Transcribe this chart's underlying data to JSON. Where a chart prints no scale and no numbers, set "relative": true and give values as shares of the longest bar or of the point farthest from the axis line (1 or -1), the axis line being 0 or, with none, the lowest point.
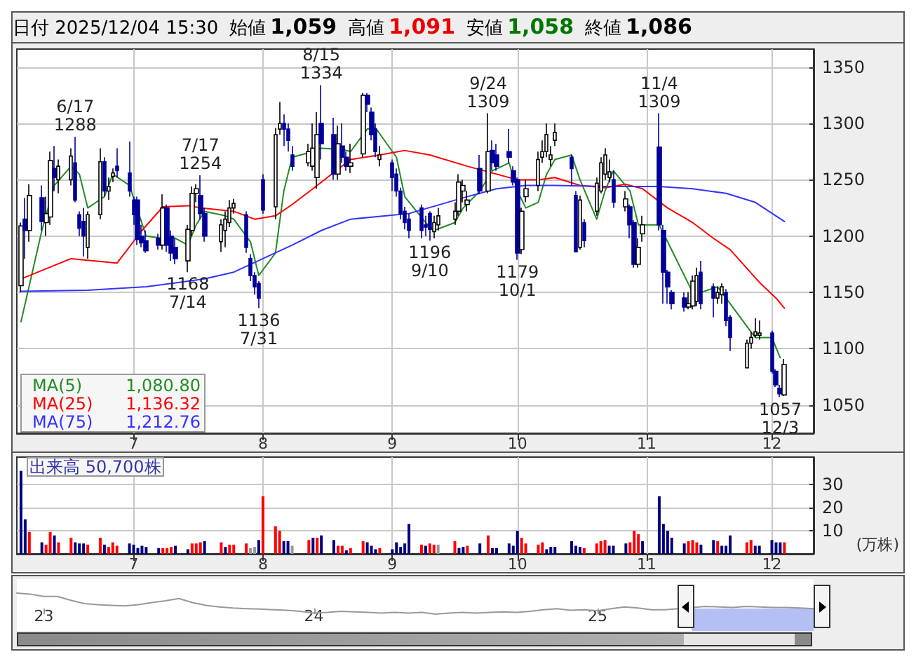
{
  "chart_data": [
    {
      "type": "candlestick",
      "title": "日付 2025/12/04 15:30",
      "grid": true,
      "legend": "bottom left",
      "colors": [
        "#ffffff",
        "#000099",
        "#ffffff",
        "#000099",
        "#ffffff",
        "#ffffff",
        "#000099",
        "#ffffff",
        "#ffffff",
        "#000099",
        "#000099",
        "#000099",
        "#ffffff",
        "#ffffff",
        "#000099",
        "#ffffff",
        "#ffffff",
        "#000099",
        "#000099",
        "#000099",
        "#000099",
        "#000099",
        "#000099",
        "#000099",
        "#ffffff",
        "#000099",
        "#000099",
        "#000099",
        "#ffffff",
        "#ffffff",
        "#ffffff",
        "#000099",
        "#000099",
        "#ffffff",
        "#ffffff",
        "#ffffff",
        "#ffffff",
        "#000099",
        "#000099",
        "#000099",
        "#000099",
        "#000099",
        "#ffffff",
        "#ffffff",
        "#000099",
        "#000099",
        "#000099",
        "#ffffff",
        "#ffffff",
        "#ffffff",
        "#000099",
        "#000099",
        "#ffffff",
        "#000099",
        "#000099",
        "#ffffff",
        "#ffffff",
        "#000099",
        "#000099",
        "#000099",
        "#ffffff",
        "#000099",
        "#000099",
        "#000099",
        "#000099",
        "#000099",
        "#000099",
        "#000099",
        "#000099",
        "#ffffff",
        "#ffffff",
        "#ffffff",
        "#ffffff",
        "#ffffff",
        "#ffffff",
        "#000099",
        "#ffffff",
        "#000099",
        "#000099",
        "#000099",
        "#000099",
        "#000099",
        "#ffffff",
        "#ffffff",
        "#ffffff",
        "#ffffff",
        "#ffffff",
        "#ffffff",
        "#ffffff",
        "#000099",
        "#000099",
        "#ffffff",
        "#000099",
        "#ffffff",
        "#ffffff",
        "#ffffff",
        "#ffffff",
        "#000099",
        "#ffffff",
        "#000099",
        "#000099",
        "#ffffff",
        "#ffffff",
        "#000099",
        "#000099",
        "#000099",
        "#000099",
        "#000099",
        "#ffffff",
        "#ffffff",
        "#ffffff",
        "#000099",
        "#000099",
        "#ffffff",
        "#ffffff",
        "#000099",
        "#000099",
        "#ffffff",
        "#ffffff",
        "#ffffff",
        "#ffffff",
        "#000099",
        "#000099",
        "#000099",
        "#ffffff"
      ],
      "annotations": [
        "始値 1,059",
        "高値 1,091",
        "安値 1,058",
        "終値 1,086",
        {
          "text": "6/17\n1288",
          "x": "2025-06-17",
          "y": 1288
        },
        {
          "text": "1168\n7/14",
          "x": "2025-07-14",
          "y": 1168
        },
        {
          "text": "7/17\n1254",
          "x": "2025-07-17",
          "y": 1254
        },
        {
          "text": "1136\n7/31",
          "x": "2025-07-31",
          "y": 1136
        },
        {
          "text": "8/15\n1334",
          "x": "2025-08-15",
          "y": 1334
        },
        {
          "text": "1196\n9/10",
          "x": "2025-09-10",
          "y": 1196
        },
        {
          "text": "9/24\n1309",
          "x": "2025-09-24",
          "y": 1309
        },
        {
          "text": "1179\n10/1",
          "x": "2025-10-01",
          "y": 1179
        },
        {
          "text": "11/4\n1309",
          "x": "2025-11-04",
          "y": 1309
        },
        {
          "text": "1057\n12/3",
          "x": "2025-12-03",
          "y": 1057
        },
        "1,080.80",
        "1,136.32",
        "1,212.76"
      ],
      "x": [
        "2025-06-04",
        "2025-06-05",
        "2025-06-06",
        "2025-06-09",
        "2025-06-10",
        "2025-06-11",
        "2025-06-12",
        "2025-06-13",
        "2025-06-16",
        "2025-06-17",
        "2025-06-18",
        "2025-06-19",
        "2025-06-20",
        "2025-06-23",
        "2025-06-24",
        "2025-06-25",
        "2025-06-26",
        "2025-06-27",
        "2025-06-30",
        "2025-07-01",
        "2025-07-02",
        "2025-07-03",
        "2025-07-04",
        "2025-07-07",
        "2025-07-08",
        "2025-07-09",
        "2025-07-10",
        "2025-07-11",
        "2025-07-14",
        "2025-07-15",
        "2025-07-16",
        "2025-07-17",
        "2025-07-18",
        "2025-07-22",
        "2025-07-23",
        "2025-07-24",
        "2025-07-25",
        "2025-07-28",
        "2025-07-29",
        "2025-07-30",
        "2025-07-31",
        "2025-08-01",
        "2025-08-04",
        "2025-08-05",
        "2025-08-06",
        "2025-08-07",
        "2025-08-08",
        "2025-08-12",
        "2025-08-13",
        "2025-08-14",
        "2025-08-15",
        "2025-08-18",
        "2025-08-19",
        "2025-08-20",
        "2025-08-21",
        "2025-08-22",
        "2025-08-25",
        "2025-08-26",
        "2025-08-27",
        "2025-08-28",
        "2025-08-29",
        "2025-09-01",
        "2025-09-02",
        "2025-09-03",
        "2025-09-04",
        "2025-09-05",
        "2025-09-08",
        "2025-09-09",
        "2025-09-10",
        "2025-09-11",
        "2025-09-12",
        "2025-09-16",
        "2025-09-17",
        "2025-09-18",
        "2025-09-19",
        "2025-09-22",
        "2025-09-24",
        "2025-09-25",
        "2025-09-26",
        "2025-09-29",
        "2025-09-30",
        "2025-10-01",
        "2025-10-02",
        "2025-10-03",
        "2025-10-06",
        "2025-10-07",
        "2025-10-08",
        "2025-10-09",
        "2025-10-10",
        "2025-10-14",
        "2025-10-15",
        "2025-10-16",
        "2025-10-17",
        "2025-10-20",
        "2025-10-21",
        "2025-10-22",
        "2025-10-23",
        "2025-10-24",
        "2025-10-27",
        "2025-10-28",
        "2025-10-29",
        "2025-10-30",
        "2025-10-31",
        "2025-11-04",
        "2025-11-05",
        "2025-11-06",
        "2025-11-07",
        "2025-11-10",
        "2025-11-11",
        "2025-11-12",
        "2025-11-13",
        "2025-11-14",
        "2025-11-17",
        "2025-11-18",
        "2025-11-19",
        "2025-11-20",
        "2025-11-21",
        "2025-11-25",
        "2025-11-26",
        "2025-11-27",
        "2025-11-28",
        "2025-12-01",
        "2025-12-02",
        "2025-12-03",
        "2025-12-04"
      ],
      "xlim": [
        "2025-06-03",
        "2025-12-11"
      ],
      "xticks": [
        {
          "value": "2025-07-01",
          "label": "7"
        },
        {
          "value": "2025-08-01",
          "label": "8"
        },
        {
          "value": "2025-09-01",
          "label": "9"
        },
        {
          "value": "2025-10-01",
          "label": "10"
        },
        {
          "value": "2025-11-01",
          "label": "11"
        },
        {
          "value": "2025-12-01",
          "label": "12"
        }
      ],
      "ylim": [
        1025,
        1366
      ],
      "yticks": [
        1050,
        1100,
        1150,
        1200,
        1250,
        1300,
        1350
      ],
      "ohlc": [
        [
          1156,
          1212,
          1150,
          1209
        ],
        [
          1215,
          1234,
          1180,
          1205
        ],
        [
          1205,
          1246,
          1195,
          1236
        ],
        [
          1234,
          1245,
          1205,
          1213
        ],
        [
          1212,
          1235,
          1200,
          1220
        ],
        [
          1217,
          1275,
          1210,
          1267
        ],
        [
          1260,
          1280,
          1240,
          1252
        ],
        [
          1250,
          1268,
          1238,
          1262
        ],
        [
          1250,
          1278,
          1245,
          1271
        ],
        [
          1265,
          1288,
          1230,
          1232
        ],
        [
          1219,
          1222,
          1200,
          1207
        ],
        [
          1213,
          1225,
          1182,
          1200
        ],
        [
          1190,
          1222,
          1180,
          1219
        ],
        [
          1219,
          1278,
          1215,
          1266
        ],
        [
          1266,
          1270,
          1235,
          1240
        ],
        [
          1240,
          1252,
          1232,
          1244
        ],
        [
          1253,
          1260,
          1248,
          1256
        ],
        [
          1262,
          1278,
          1252,
          1258
        ],
        [
          1256,
          1284,
          1235,
          1240
        ],
        [
          1232,
          1235,
          1210,
          1219
        ],
        [
          1232,
          1235,
          1192,
          1197
        ],
        [
          1200,
          1210,
          1190,
          1194
        ],
        [
          1196,
          1205,
          1185,
          1187
        ],
        [
          1198,
          1202,
          1188,
          1192
        ],
        [
          1192,
          1237,
          1188,
          1225
        ],
        [
          1225,
          1228,
          1186,
          1192
        ],
        [
          1200,
          1205,
          1178,
          1185
        ],
        [
          1190,
          1198,
          1175,
          1180
        ],
        [
          1178,
          1210,
          1168,
          1206
        ],
        [
          1205,
          1244,
          1200,
          1238
        ],
        [
          1238,
          1246,
          1230,
          1242
        ],
        [
          1236,
          1254,
          1215,
          1220
        ],
        [
          1220,
          1225,
          1195,
          1200
        ],
        [
          1195,
          1215,
          1186,
          1210
        ],
        [
          1205,
          1222,
          1190,
          1215
        ],
        [
          1212,
          1232,
          1208,
          1225
        ],
        [
          1225,
          1233,
          1220,
          1229
        ],
        [
          1219,
          1222,
          1185,
          1190
        ],
        [
          1180,
          1184,
          1160,
          1165
        ],
        [
          1165,
          1168,
          1148,
          1155
        ],
        [
          1158,
          1160,
          1136,
          1145
        ],
        [
          1250,
          1255,
          1220,
          1223
        ],
        [
          1226,
          1296,
          1215,
          1290
        ],
        [
          1295,
          1319,
          1290,
          1300
        ],
        [
          1300,
          1308,
          1280,
          1295
        ],
        [
          1295,
          1300,
          1275,
          1285
        ],
        [
          1272,
          1280,
          1258,
          1262
        ],
        [
          1265,
          1282,
          1262,
          1275
        ],
        [
          1262,
          1300,
          1258,
          1278
        ],
        [
          1252,
          1310,
          1242,
          1290
        ],
        [
          1300,
          1334,
          1268,
          1282
        ],
        [
          1290,
          1305,
          1250,
          1255
        ],
        [
          1255,
          1298,
          1250,
          1282
        ],
        [
          1280,
          1300,
          1265,
          1270
        ],
        [
          1270,
          1275,
          1258,
          1262
        ],
        [
          1262,
          1282,
          1256,
          1265
        ],
        [
          1273,
          1327,
          1270,
          1325
        ],
        [
          1325,
          1327,
          1310,
          1317
        ],
        [
          1310,
          1314,
          1285,
          1290
        ],
        [
          1295,
          1300,
          1270,
          1275
        ],
        [
          1268,
          1280,
          1262,
          1272
        ],
        [
          1265,
          1268,
          1240,
          1252
        ],
        [
          1255,
          1260,
          1235,
          1240
        ],
        [
          1240,
          1243,
          1215,
          1220
        ],
        [
          1222,
          1226,
          1206,
          1212
        ],
        [
          1215,
          1220,
          1198,
          1205
        ],
        [
          1225,
          1228,
          1198,
          1205
        ],
        [
          1210,
          1218,
          1200,
          1208
        ],
        [
          1220,
          1222,
          1196,
          1206
        ],
        [
          1204,
          1218,
          1198,
          1212
        ],
        [
          1210,
          1225,
          1205,
          1218
        ],
        [
          1215,
          1230,
          1210,
          1222
        ],
        [
          1222,
          1255,
          1218,
          1248
        ],
        [
          1240,
          1250,
          1230,
          1245
        ],
        [
          1228,
          1240,
          1222,
          1232
        ],
        [
          1260,
          1272,
          1237,
          1240
        ],
        [
          1240,
          1309,
          1238,
          1275
        ],
        [
          1276,
          1285,
          1258,
          1265
        ],
        [
          1272,
          1282,
          1258,
          1262
        ],
        [
          1275,
          1295,
          1265,
          1270
        ],
        [
          1258,
          1262,
          1245,
          1248
        ],
        [
          1250,
          1252,
          1179,
          1185
        ],
        [
          1188,
          1225,
          1184,
          1222
        ],
        [
          1235,
          1250,
          1230,
          1242
        ],
        [
          1245,
          1275,
          1240,
          1268
        ],
        [
          1270,
          1285,
          1265,
          1275
        ],
        [
          1275,
          1300,
          1270,
          1290
        ],
        [
          1268,
          1280,
          1262,
          1272
        ],
        [
          1285,
          1300,
          1280,
          1292
        ],
        [
          1270,
          1272,
          1245,
          1260
        ],
        [
          1236,
          1240,
          1186,
          1186
        ],
        [
          1190,
          1236,
          1188,
          1232
        ],
        [
          1212,
          1215,
          1190,
          1196
        ],
        [
          1222,
          1252,
          1218,
          1247
        ],
        [
          1240,
          1270,
          1238,
          1265
        ],
        [
          1255,
          1278,
          1250,
          1272
        ],
        [
          1252,
          1268,
          1248,
          1257
        ],
        [
          1250,
          1258,
          1225,
          1230
        ],
        [
          1226,
          1240,
          1222,
          1233
        ],
        [
          1226,
          1228,
          1198,
          1210
        ],
        [
          1212,
          1214,
          1172,
          1175
        ],
        [
          1175,
          1198,
          1172,
          1190
        ],
        [
          1202,
          1218,
          1195,
          1210
        ],
        [
          1279,
          1309,
          1205,
          1210
        ],
        [
          1205,
          1210,
          1140,
          1168
        ],
        [
          1168,
          1170,
          1140,
          1155
        ],
        [
          1150,
          1152,
          1135,
          1140
        ],
        [
          1145,
          1150,
          1133,
          1137
        ],
        [
          1137,
          1150,
          1135,
          1140
        ],
        [
          1138,
          1165,
          1135,
          1160
        ],
        [
          1142,
          1172,
          1138,
          1165
        ],
        [
          1168,
          1178,
          1135,
          1140
        ],
        [
          1155,
          1158,
          1128,
          1145
        ],
        [
          1145,
          1155,
          1140,
          1150
        ],
        [
          1148,
          1158,
          1140,
          1155
        ],
        [
          1150,
          1153,
          1120,
          1125
        ],
        [
          1128,
          1130,
          1098,
          1110
        ],
        [
          1083,
          1108,
          1083,
          1105
        ],
        [
          1105,
          1115,
          1100,
          1110
        ],
        [
          1112,
          1127,
          1110,
          1115
        ],
        [
          1112,
          1125,
          1108,
          1114
        ],
        [
          1114,
          1116,
          1078,
          1080
        ],
        [
          1080,
          1082,
          1066,
          1068
        ],
        [
          1065,
          1068,
          1057,
          1060
        ],
        [
          1059,
          1091,
          1058,
          1086
        ]
      ],
      "series": [
        {
          "name": "MA(5)",
          "type": "line",
          "color": "#228b22",
          "x": [
            "2025-06-04",
            "2025-06-09",
            "2025-06-12",
            "2025-06-16",
            "2025-06-18",
            "2025-06-20",
            "2025-06-24",
            "2025-06-26",
            "2025-06-30",
            "2025-07-04",
            "2025-07-08",
            "2025-07-10",
            "2025-07-14",
            "2025-07-16",
            "2025-07-18",
            "2025-07-23",
            "2025-07-25",
            "2025-07-29",
            "2025-07-31",
            "2025-08-04",
            "2025-08-06",
            "2025-08-08",
            "2025-08-13",
            "2025-08-15",
            "2025-08-20",
            "2025-08-22",
            "2025-08-26",
            "2025-08-28",
            "2025-09-02",
            "2025-09-04",
            "2025-09-09",
            "2025-09-11",
            "2025-09-16",
            "2025-09-18",
            "2025-09-22",
            "2025-09-25",
            "2025-09-29",
            "2025-10-01",
            "2025-10-03",
            "2025-10-06",
            "2025-10-08",
            "2025-10-10",
            "2025-10-14",
            "2025-10-16",
            "2025-10-20",
            "2025-10-22",
            "2025-10-24",
            "2025-10-28",
            "2025-10-30",
            "2025-11-04",
            "2025-11-06",
            "2025-11-10",
            "2025-11-12",
            "2025-11-14",
            "2025-11-18",
            "2025-11-20",
            "2025-11-25",
            "2025-11-27",
            "2025-12-01",
            "2025-12-03"
          ],
          "values": [
            1124,
            1205,
            1245,
            1262,
            1255,
            1225,
            1235,
            1255,
            1245,
            1200,
            1198,
            1200,
            1192,
            1210,
            1222,
            1218,
            1215,
            1195,
            1165,
            1185,
            1240,
            1270,
            1275,
            1278,
            1277,
            1275,
            1295,
            1296,
            1270,
            1235,
            1212,
            1205,
            1212,
            1225,
            1240,
            1258,
            1265,
            1240,
            1225,
            1230,
            1255,
            1268,
            1272,
            1250,
            1215,
            1240,
            1258,
            1240,
            1210,
            1210,
            1195,
            1165,
            1150,
            1150,
            1155,
            1145,
            1120,
            1110,
            1110,
            1092
          ]
        },
        {
          "name": "MA(25)",
          "type": "line",
          "color": "#ff0000",
          "x": [
            "2025-06-04",
            "2025-06-16",
            "2025-06-27",
            "2025-07-03",
            "2025-07-08",
            "2025-07-14",
            "2025-07-17",
            "2025-07-25",
            "2025-07-30",
            "2025-08-04",
            "2025-08-08",
            "2025-08-14",
            "2025-08-22",
            "2025-08-29",
            "2025-09-04",
            "2025-09-10",
            "2025-09-19",
            "2025-09-26",
            "2025-10-01",
            "2025-10-06",
            "2025-10-10",
            "2025-10-16",
            "2025-10-22",
            "2025-10-27",
            "2025-10-31",
            "2025-11-06",
            "2025-11-12",
            "2025-11-17",
            "2025-11-21",
            "2025-11-28",
            "2025-12-02",
            "2025-12-04"
          ],
          "values": [
            1162,
            1180,
            1176,
            1205,
            1226,
            1227,
            1225,
            1222,
            1215,
            1218,
            1228,
            1245,
            1268,
            1272,
            1276,
            1272,
            1262,
            1255,
            1250,
            1250,
            1252,
            1245,
            1243,
            1246,
            1242,
            1225,
            1212,
            1198,
            1188,
            1159,
            1145,
            1136
          ]
        },
        {
          "name": "MA(75)",
          "type": "line",
          "color": "#3333ff",
          "x": [
            "2025-06-04",
            "2025-06-20",
            "2025-07-04",
            "2025-07-18",
            "2025-07-25",
            "2025-08-01",
            "2025-08-08",
            "2025-08-15",
            "2025-08-22",
            "2025-09-05",
            "2025-09-18",
            "2025-09-26",
            "2025-10-03",
            "2025-10-10",
            "2025-10-22",
            "2025-11-04",
            "2025-11-12",
            "2025-11-20",
            "2025-11-27",
            "2025-12-04"
          ],
          "values": [
            1151,
            1152,
            1155,
            1162,
            1168,
            1180,
            1192,
            1205,
            1215,
            1220,
            1234,
            1242,
            1245,
            1245,
            1244,
            1244,
            1242,
            1238,
            1230,
            1213
          ]
        }
      ]
    },
    {
      "type": "bar",
      "title": "出来高 50,700株",
      "ylabel": "(万株)",
      "grid": true,
      "x": [
        "2025-06-04",
        "2025-06-05",
        "2025-06-06",
        "2025-06-09",
        "2025-06-10",
        "2025-06-11",
        "2025-06-12",
        "2025-06-13",
        "2025-06-16",
        "2025-06-17",
        "2025-06-18",
        "2025-06-19",
        "2025-06-20",
        "2025-06-23",
        "2025-06-24",
        "2025-06-25",
        "2025-06-26",
        "2025-06-27",
        "2025-06-30",
        "2025-07-01",
        "2025-07-02",
        "2025-07-03",
        "2025-07-04",
        "2025-07-07",
        "2025-07-08",
        "2025-07-09",
        "2025-07-10",
        "2025-07-11",
        "2025-07-14",
        "2025-07-15",
        "2025-07-16",
        "2025-07-17",
        "2025-07-18",
        "2025-07-22",
        "2025-07-23",
        "2025-07-24",
        "2025-07-25",
        "2025-07-28",
        "2025-07-29",
        "2025-07-30",
        "2025-07-31",
        "2025-08-01",
        "2025-08-04",
        "2025-08-05",
        "2025-08-06",
        "2025-08-07",
        "2025-08-08",
        "2025-08-12",
        "2025-08-13",
        "2025-08-14",
        "2025-08-15",
        "2025-08-18",
        "2025-08-19",
        "2025-08-20",
        "2025-08-21",
        "2025-08-22",
        "2025-08-25",
        "2025-08-26",
        "2025-08-27",
        "2025-08-28",
        "2025-08-29",
        "2025-09-01",
        "2025-09-02",
        "2025-09-03",
        "2025-09-04",
        "2025-09-05",
        "2025-09-08",
        "2025-09-09",
        "2025-09-10",
        "2025-09-11",
        "2025-09-12",
        "2025-09-16",
        "2025-09-17",
        "2025-09-18",
        "2025-09-19",
        "2025-09-22",
        "2025-09-24",
        "2025-09-25",
        "2025-09-26",
        "2025-09-29",
        "2025-09-30",
        "2025-10-01",
        "2025-10-02",
        "2025-10-03",
        "2025-10-06",
        "2025-10-07",
        "2025-10-08",
        "2025-10-09",
        "2025-10-10",
        "2025-10-14",
        "2025-10-15",
        "2025-10-16",
        "2025-10-17",
        "2025-10-20",
        "2025-10-21",
        "2025-10-22",
        "2025-10-23",
        "2025-10-24",
        "2025-10-27",
        "2025-10-28",
        "2025-10-29",
        "2025-10-30",
        "2025-10-31",
        "2025-11-04",
        "2025-11-05",
        "2025-11-06",
        "2025-11-07",
        "2025-11-10",
        "2025-11-11",
        "2025-11-12",
        "2025-11-13",
        "2025-11-14",
        "2025-11-17",
        "2025-11-18",
        "2025-11-19",
        "2025-11-20",
        "2025-11-21",
        "2025-11-25",
        "2025-11-26",
        "2025-11-27",
        "2025-11-28",
        "2025-12-01",
        "2025-12-02",
        "2025-12-03",
        "2025-12-04"
      ],
      "xlim": [
        "2025-06-03",
        "2025-12-11"
      ],
      "xticks": [
        {
          "value": "2025-07-01",
          "label": "7"
        },
        {
          "value": "2025-08-01",
          "label": "8"
        },
        {
          "value": "2025-09-01",
          "label": "9"
        },
        {
          "value": "2025-10-01",
          "label": "10"
        },
        {
          "value": "2025-11-01",
          "label": "11"
        },
        {
          "value": "2025-12-01",
          "label": "12"
        }
      ],
      "ylim": [
        0,
        42
      ],
      "yticks": [
        10,
        20,
        30
      ],
      "values": [
        36,
        15,
        9.5,
        5,
        4,
        9.5,
        8,
        5,
        7,
        5,
        4.5,
        4.5,
        4,
        7,
        4,
        3,
        5,
        3.5,
        4.5,
        4,
        2.5,
        3.5,
        3,
        2.5,
        2.5,
        2.5,
        3,
        3.5,
        2,
        4.5,
        4.5,
        5,
        5.5,
        5,
        3,
        4,
        4,
        4.5,
        2.5,
        3,
        6,
        25,
        12,
        10,
        5.5,
        5.5,
        3.5,
        6,
        7,
        7,
        8,
        6,
        3.5,
        3.5,
        1.5,
        2.5,
        5.5,
        5,
        3.5,
        2,
        2.5,
        2,
        5,
        3,
        4.5,
        13,
        4,
        3.5,
        4.5,
        4,
        4,
        5.5,
        2.5,
        3,
        3.5,
        4.5,
        8,
        2.5,
        2.5,
        4.5,
        3.5,
        10,
        7,
        4.5,
        4,
        5,
        2,
        3,
        3,
        5.5,
        3.5,
        3,
        2.5,
        4.5,
        5.5,
        6,
        3.5,
        3.5,
        4.5,
        5,
        10,
        8.5,
        5.5,
        25,
        13,
        10,
        7,
        4.5,
        5.5,
        6,
        5,
        4,
        6,
        5.5,
        3.5,
        3.5,
        8,
        5,
        6,
        3.5,
        3.5,
        6,
        5,
        5,
        5
      ],
      "colors": [
        "#000080",
        "#000080",
        "#ff0000",
        "#000080",
        "#ff0000",
        "#ff0000",
        "#000080",
        "#ff0000",
        "#ff0000",
        "#000080",
        "#000080",
        "#000080",
        "#ff0000",
        "#ff0000",
        "#000080",
        "#ff0000",
        "#ff0000",
        "#ff0000",
        "#000080",
        "#000080",
        "#000080",
        "#000080",
        "#000080",
        "#000080",
        "#ff0000",
        "#ff0000",
        "#ff0000",
        "#000080",
        "#000080",
        "#ff0000",
        "#ff0000",
        "#ff0000",
        "#000080",
        "#ff0000",
        "#000080",
        "#ff0000",
        "#ff0000",
        "#ff0000",
        "#999999",
        "#999999",
        "#000080",
        "#ff0000",
        "#ff0000",
        "#ff0000",
        "#000080",
        "#000080",
        "#999999",
        "#ff0000",
        "#000080",
        "#ff0000",
        "#000080",
        "#000080",
        "#ff0000",
        "#ff0000",
        "#000080",
        "#ff0000",
        "#ff0000",
        "#000080",
        "#000080",
        "#000080",
        "#ff0000",
        "#000080",
        "#000080",
        "#000080",
        "#000080",
        "#000080",
        "#ff0000",
        "#000080",
        "#ff0000",
        "#ff0000",
        "#999999",
        "#ff0000",
        "#000080",
        "#000080",
        "#ff0000",
        "#000080",
        "#ff0000",
        "#000080",
        "#000080",
        "#000080",
        "#000080",
        "#000080",
        "#ff0000",
        "#ff0000",
        "#ff0000",
        "#ff0000",
        "#000080",
        "#000080",
        "#000080",
        "#000080",
        "#000080",
        "#000080",
        "#ff0000",
        "#ff0000",
        "#ff0000",
        "#ff0000",
        "#000080",
        "#000080",
        "#000080",
        "#ff0000",
        "#ff0000",
        "#ff0000",
        "#000080",
        "#000080",
        "#000080",
        "#000080",
        "#000080",
        "#000080",
        "#ff0000",
        "#ff0000",
        "#ff0000",
        "#000080",
        "#000080",
        "#ff0000",
        "#000080",
        "#000080",
        "#000080",
        "#ff0000",
        "#ff0000",
        "#000080",
        "#000080",
        "#000080",
        "#000080",
        "#000080",
        "#ff0000"
      ]
    },
    {
      "type": "line",
      "relative": true,
      "tick_labels": "x",
      "categories": [
        null,
        null,
        "23",
        null,
        null,
        null,
        null,
        null,
        null,
        null,
        null,
        null,
        null,
        null,
        null,
        null,
        null,
        null,
        null,
        null,
        null,
        null,
        "24",
        null,
        null,
        null,
        null,
        null,
        null,
        null,
        null,
        null,
        null,
        null,
        null,
        null,
        null,
        null,
        null,
        null,
        null,
        null,
        null,
        "25",
        null,
        null,
        null,
        null,
        null,
        null,
        null,
        null,
        null,
        null,
        null,
        null,
        null,
        null,
        null,
        null
      ],
      "series": [
        {
          "type": "line",
          "color": "#999999",
          "values": [
            1,
            0.95,
            0.84,
            0.84,
            0.66,
            0.5,
            0.45,
            0.42,
            0.39,
            0.45,
            0.55,
            0.63,
            0.74,
            0.55,
            0.42,
            0.34,
            0.29,
            0.26,
            0.24,
            0.21,
            0.18,
            0.13,
            0.05,
            0.08,
            0.13,
            0.11,
            0.08,
            0.05,
            0.08,
            0.05,
            0.08,
            0,
            0.05,
            0.08,
            0.05,
            0.08,
            0.11,
            0.08,
            0.13,
            0.21,
            0.26,
            0.18,
            0.21,
            0.16,
            0.26,
            0.34,
            0.29,
            0.21,
            0.21,
            0.26,
            0.32,
            0.37,
            0.34,
            0.32,
            0.37,
            0.34,
            0.32,
            0.32,
            0.29,
            0.26
          ]
        }
      ]
    }
  ]
}
